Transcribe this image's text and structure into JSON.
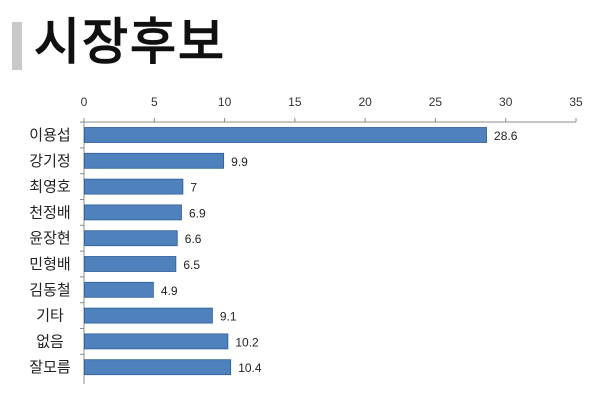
{
  "header": {
    "title": "시장후보"
  },
  "chart_data": {
    "type": "bar",
    "orientation": "horizontal",
    "categories": [
      "이용섭",
      "강기정",
      "최영호",
      "천정배",
      "윤장현",
      "민형배",
      "김동철",
      "기타",
      "없음",
      "잘모름"
    ],
    "values": [
      28.6,
      9.9,
      7,
      6.9,
      6.6,
      6.5,
      4.9,
      9.1,
      10.2,
      10.4
    ],
    "value_labels": [
      "28.6",
      "9.9",
      "7",
      "6.9",
      "6.6",
      "6.5",
      "4.9",
      "9.1",
      "10.2",
      "10.4"
    ],
    "xlim": [
      0,
      35
    ],
    "ticks": [
      0,
      5,
      10,
      15,
      20,
      25,
      30,
      35
    ],
    "tick_labels": [
      "0",
      "5",
      "10",
      "15",
      "20",
      "25",
      "30",
      "35"
    ],
    "axis_position": "top",
    "grid": false,
    "legend": "none",
    "bar_color": "#4f81bd",
    "bar_edge_color": "#2e5d99"
  }
}
